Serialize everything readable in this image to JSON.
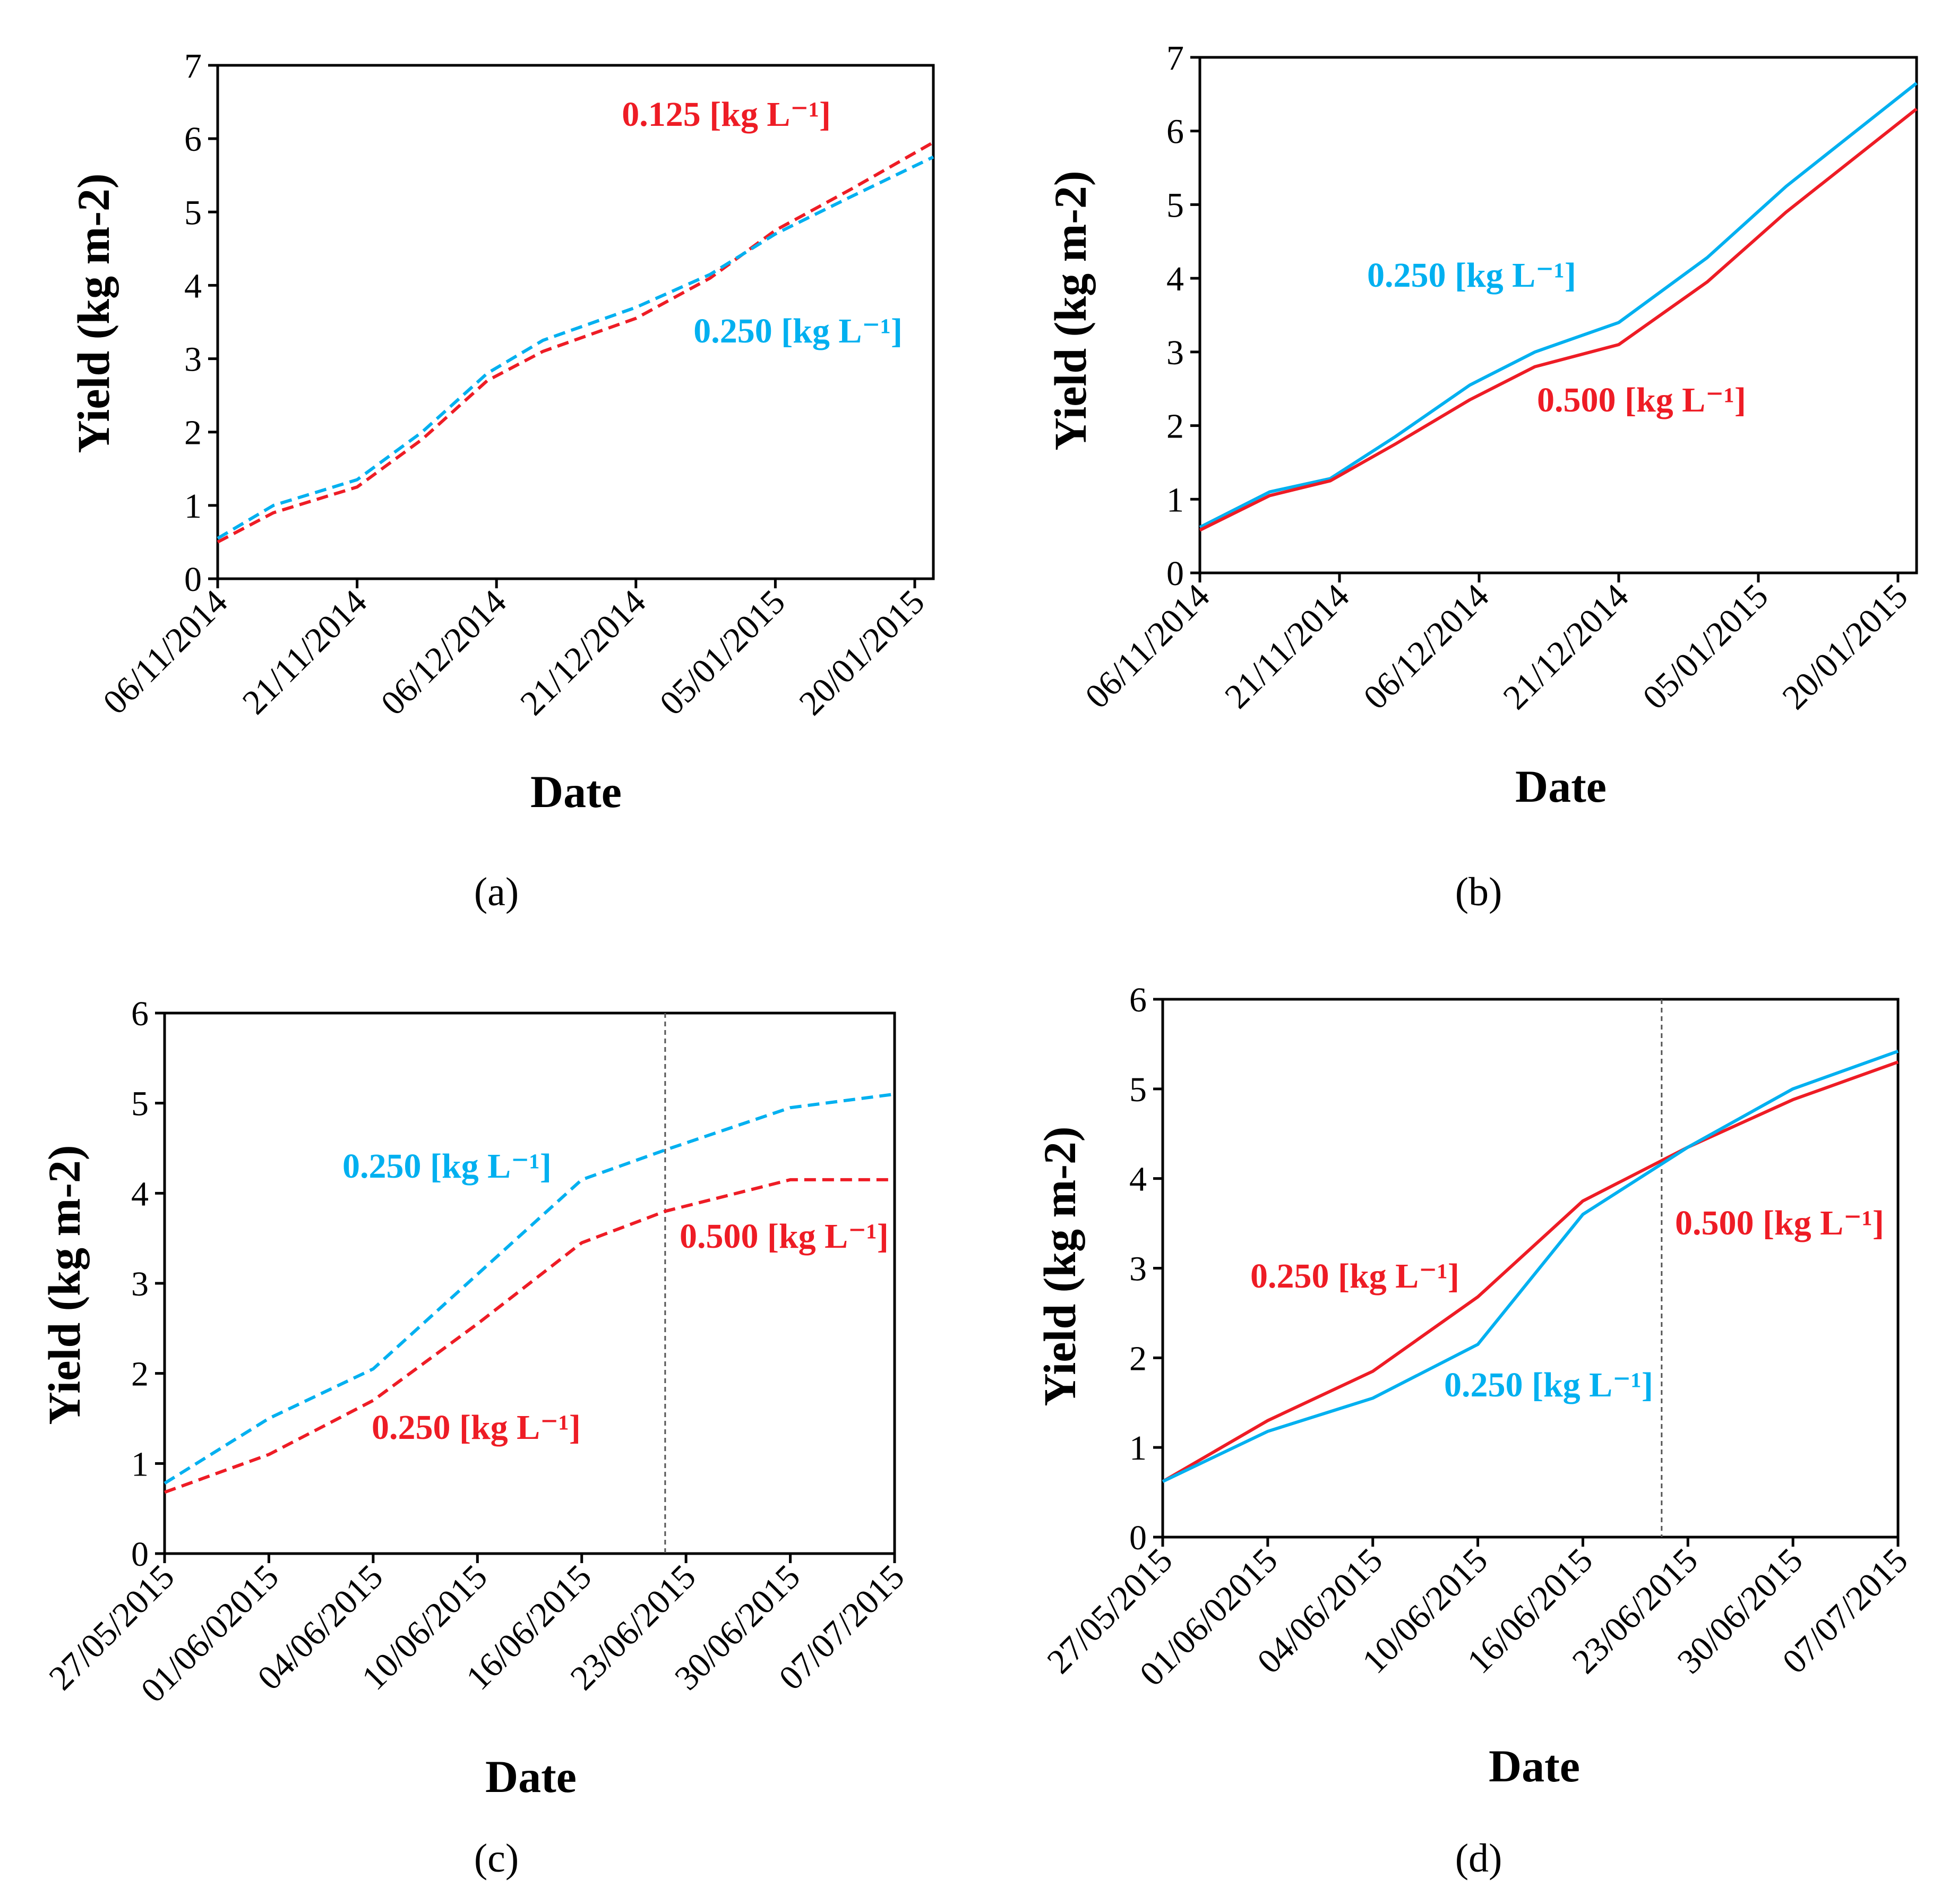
{
  "colors": {
    "red": "#ee1c25",
    "blue": "#00b0f0",
    "axis": "#000000"
  },
  "chart_data": [
    {
      "id": "a",
      "type": "line",
      "panel_label": "(a)",
      "xlabel": "Date",
      "ylabel": "Yield (kg m-2)",
      "ylim": [
        0,
        7
      ],
      "yticks": [
        0,
        1,
        2,
        3,
        4,
        5,
        6,
        7
      ],
      "xlim": [
        0,
        77
      ],
      "categories": [
        "06/11/2014",
        "21/11/2014",
        "06/12/2014",
        "21/12/2014",
        "05/01/2015",
        "20/01/2015"
      ],
      "category_x": [
        0,
        15,
        30,
        45,
        60,
        75
      ],
      "vline_x": null,
      "series": [
        {
          "name": "0.125 [kg L−1]",
          "label": "0.125 [kg L⁻¹]",
          "color": "#ee1c25",
          "dash": true,
          "x": [
            0,
            6,
            15,
            22,
            29,
            35,
            45,
            53,
            60,
            68,
            77
          ],
          "y": [
            0.5,
            0.9,
            1.25,
            1.9,
            2.7,
            3.1,
            3.55,
            4.1,
            4.75,
            5.3,
            5.95
          ]
        },
        {
          "name": "0.250 [kg L−1]",
          "label": "0.250 [kg L⁻¹]",
          "color": "#00b0f0",
          "dash": true,
          "x": [
            0,
            6,
            15,
            22,
            29,
            35,
            45,
            53,
            60,
            68,
            77
          ],
          "y": [
            0.55,
            1.0,
            1.35,
            2.0,
            2.8,
            3.25,
            3.7,
            4.15,
            4.7,
            5.2,
            5.75
          ]
        }
      ]
    },
    {
      "id": "b",
      "type": "line",
      "panel_label": "(b)",
      "xlabel": "Date",
      "ylabel": "Yield (kg m-2)",
      "ylim": [
        0,
        7
      ],
      "yticks": [
        0,
        1,
        2,
        3,
        4,
        5,
        6,
        7
      ],
      "xlim": [
        0,
        77
      ],
      "categories": [
        "06/11/2014",
        "21/11/2014",
        "06/12/2014",
        "21/12/2014",
        "05/01/2015",
        "20/01/2015"
      ],
      "category_x": [
        0,
        15,
        30,
        45,
        60,
        75
      ],
      "vline_x": null,
      "series": [
        {
          "name": "0.250 [kg L−1]",
          "label": "0.250 [kg L⁻¹]",
          "color": "#00b0f0",
          "dash": false,
          "x": [
            0,
            7.5,
            14,
            21,
            29,
            36,
            45,
            54.5,
            63,
            77
          ],
          "y": [
            0.62,
            1.1,
            1.28,
            1.85,
            2.55,
            3.0,
            3.4,
            4.28,
            5.25,
            6.65
          ]
        },
        {
          "name": "0.500 [kg L−1]",
          "label": "0.500 [kg L⁻¹]",
          "color": "#ee1c25",
          "dash": false,
          "x": [
            0,
            7.5,
            14,
            21,
            29,
            36,
            45,
            54.5,
            63,
            77
          ],
          "y": [
            0.58,
            1.05,
            1.25,
            1.75,
            2.35,
            2.8,
            3.1,
            3.95,
            4.9,
            6.3
          ]
        }
      ]
    },
    {
      "id": "c",
      "type": "line",
      "panel_label": "(c)",
      "xlabel": "Date",
      "ylabel": "Yield (kg m-2)",
      "ylim": [
        0,
        6
      ],
      "yticks": [
        0,
        1,
        2,
        3,
        4,
        5,
        6
      ],
      "xlim": [
        0,
        7
      ],
      "categories": [
        "27/05/2015",
        "01/06/02015",
        "04/06/2015",
        "10/06/2015",
        "16/06/2015",
        "23/06/2015",
        "30/06/2015",
        "07/07/2015"
      ],
      "category_x": [
        0,
        1,
        2,
        3,
        4,
        5,
        6,
        7
      ],
      "vline_x": 4.8,
      "series": [
        {
          "name": "0.250 [kg L−1] (blue)",
          "label": "0.250 [kg L⁻¹]",
          "color": "#00b0f0",
          "dash": true,
          "x": [
            0,
            1,
            2,
            3,
            4,
            4.8,
            6,
            7
          ],
          "y": [
            0.78,
            1.5,
            2.05,
            3.1,
            4.15,
            4.48,
            4.95,
            5.1
          ]
        },
        {
          "name": "0.500 [kg L−1]",
          "label": "0.500 [kg L⁻¹]",
          "color": "#ee1c25",
          "dash": true,
          "x": [
            0,
            1,
            2,
            3,
            4,
            4.8,
            6,
            7
          ],
          "y": [
            0.68,
            1.1,
            1.7,
            2.55,
            3.45,
            3.8,
            4.15,
            4.15
          ]
        }
      ],
      "extra_labels": [
        {
          "text": "0.250 [kg L⁻¹]",
          "color": "#ee1c25"
        }
      ]
    },
    {
      "id": "d",
      "type": "line",
      "panel_label": "(d)",
      "xlabel": "Date",
      "ylabel": "Yield (kg m-2)",
      "ylim": [
        0,
        6
      ],
      "yticks": [
        0,
        1,
        2,
        3,
        4,
        5,
        6
      ],
      "xlim": [
        0,
        7
      ],
      "categories": [
        "27/05/2015",
        "01/06/02015",
        "04/06/2015",
        "10/06/2015",
        "16/06/2015",
        "23/06/2015",
        "30/06/2015",
        "07/07/2015"
      ],
      "category_x": [
        0,
        1,
        2,
        3,
        4,
        5,
        6,
        7
      ],
      "vline_x": 4.75,
      "series": [
        {
          "name": "0.250 [kg L−1] (red)",
          "label": "0.250 [kg L⁻¹]",
          "color": "#ee1c25",
          "dash": false,
          "x": [
            0,
            1,
            2,
            3,
            4,
            5,
            6,
            7
          ],
          "y": [
            0.62,
            1.3,
            1.85,
            2.68,
            3.75,
            4.35,
            4.88,
            5.3
          ]
        },
        {
          "name": "0.250 [kg L−1] (blue)",
          "label": "0.250 [kg L⁻¹]",
          "color": "#00b0f0",
          "dash": false,
          "x": [
            0,
            1,
            2,
            3,
            4,
            5,
            6,
            7
          ],
          "y": [
            0.62,
            1.18,
            1.55,
            2.15,
            3.6,
            4.35,
            5.0,
            5.42
          ]
        }
      ],
      "extra_labels": [
        {
          "text": "0.500 [kg L⁻¹]",
          "color": "#ee1c25"
        }
      ]
    }
  ]
}
